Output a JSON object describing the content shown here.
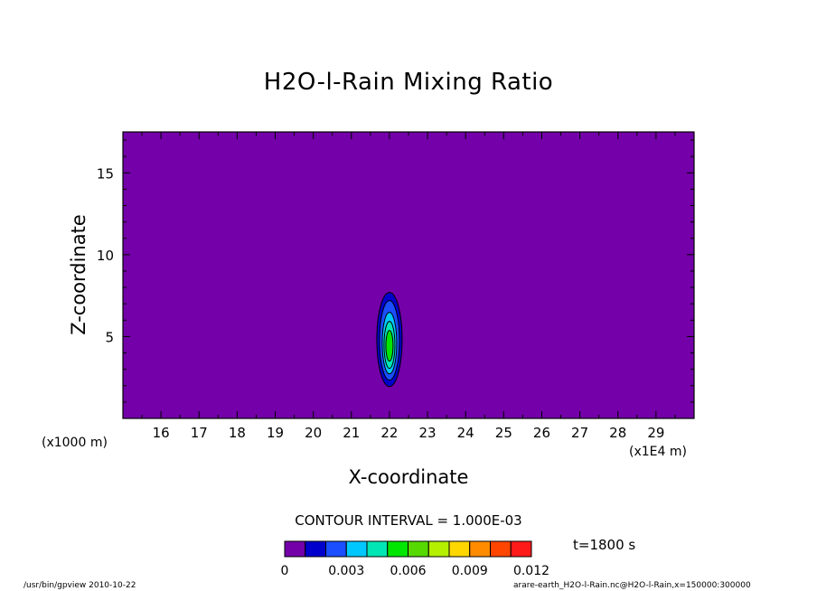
{
  "chart_data": {
    "type": "heatmap",
    "title": "H2O-l-Rain Mixing Ratio",
    "xlabel": "X-coordinate",
    "ylabel": "Z-coordinate",
    "x_unit_left": "(x1000 m)",
    "x_unit_right": "(x1E4 m)",
    "xlim": [
      15,
      30
    ],
    "ylim": [
      0,
      17.5
    ],
    "xticks": [
      16,
      17,
      18,
      19,
      20,
      21,
      22,
      23,
      24,
      25,
      26,
      27,
      28,
      29
    ],
    "yticks": [
      5,
      10,
      15
    ],
    "contour_interval": "CONTOUR INTERVAL = 1.000E-03",
    "time": "t=1800 s",
    "colorbar": {
      "levels": [
        0,
        0.001,
        0.002,
        0.003,
        0.004,
        0.005,
        0.006,
        0.007,
        0.008,
        0.009,
        0.01,
        0.011,
        0.012
      ],
      "colors": [
        "#7300a8",
        "#0000cc",
        "#1a4eff",
        "#00c8ff",
        "#00e6b4",
        "#00e600",
        "#56d900",
        "#b4f000",
        "#ffd700",
        "#ff8c00",
        "#ff4500",
        "#ff1a1a",
        "#ffa0a0"
      ],
      "tick_labels": [
        "0",
        "0.003",
        "0.006",
        "0.009",
        "0.012"
      ]
    },
    "feature": {
      "description_values": "rain core",
      "center_x": 22.0,
      "center_z": 4.6,
      "max_value": 0.0055,
      "levels_present": [
        0.001,
        0.002,
        0.003,
        0.004,
        0.005
      ]
    }
  },
  "footer": {
    "left": "/usr/bin/gpview  2010-10-22",
    "right": "arare-earth_H2O-l-Rain.nc@H2O-l-Rain,x=150000:300000"
  }
}
